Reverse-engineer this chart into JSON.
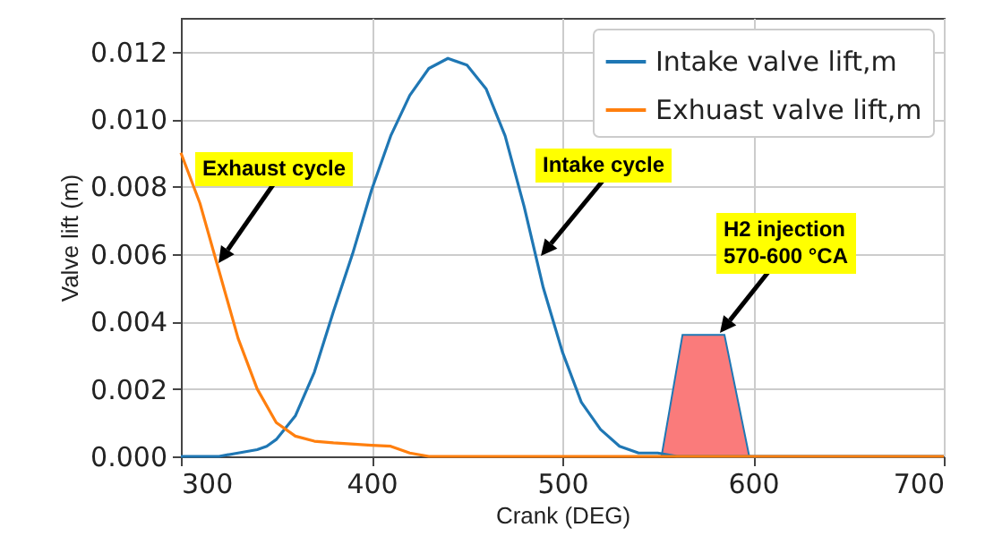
{
  "chart_data": {
    "type": "line",
    "xlabel": "Crank (DEG)",
    "ylabel": "Valve lift (m)",
    "xlim": [
      300,
      700
    ],
    "xticks": [
      300,
      400,
      500,
      600,
      700
    ],
    "ylim": [
      0,
      0.013
    ],
    "yticks": [
      {
        "value": 0,
        "label": "0.000"
      },
      {
        "value": 0.002,
        "label": "0.002"
      },
      {
        "value": 0.004,
        "label": "0.004"
      },
      {
        "value": 0.006,
        "label": "0.006"
      },
      {
        "value": 0.008,
        "label": "0.008"
      },
      {
        "value": 0.01,
        "label": "0.010"
      },
      {
        "value": 0.012,
        "label": "0.012"
      }
    ],
    "grid": true,
    "legend": "top right",
    "marker": "none",
    "line_style": "solid",
    "series": [
      {
        "name": "Intake valve lift,m",
        "color": "#1f77b4",
        "x": [
          300,
          320,
          330,
          340,
          345,
          350,
          360,
          370,
          380,
          390,
          400,
          410,
          420,
          430,
          440,
          450,
          460,
          470,
          480,
          490,
          500,
          510,
          520,
          530,
          540,
          550,
          560,
          600,
          650,
          700
        ],
        "values": [
          0,
          0,
          0.0001,
          0.0002,
          0.0003,
          0.0005,
          0.0012,
          0.0025,
          0.0043,
          0.006,
          0.0079,
          0.0095,
          0.0107,
          0.0115,
          0.0118,
          0.0116,
          0.0109,
          0.0095,
          0.0074,
          0.005,
          0.0031,
          0.0016,
          0.0008,
          0.0003,
          0.0001,
          0.0001,
          0,
          0,
          0,
          0
        ]
      },
      {
        "name": "Exhuast valve lift,m",
        "color": "#ff7f0e",
        "x": [
          300,
          310,
          320,
          330,
          340,
          350,
          360,
          370,
          380,
          400,
          410,
          420,
          430,
          500,
          600,
          700
        ],
        "values": [
          0.009,
          0.0075,
          0.0055,
          0.0035,
          0.002,
          0.001,
          0.0006,
          0.00045,
          0.0004,
          0.00033,
          0.0003,
          0.0001,
          0,
          0,
          0,
          0
        ]
      },
      {
        "type": "area",
        "color": "#fa7b7b",
        "x": [
          552,
          563,
          585,
          598
        ],
        "values": [
          0,
          0.0036,
          0.0036,
          0
        ]
      }
    ],
    "annotations": [
      "Exhaust cycle",
      "Intake cycle",
      "H2 injection\n570-600 °CA"
    ]
  }
}
